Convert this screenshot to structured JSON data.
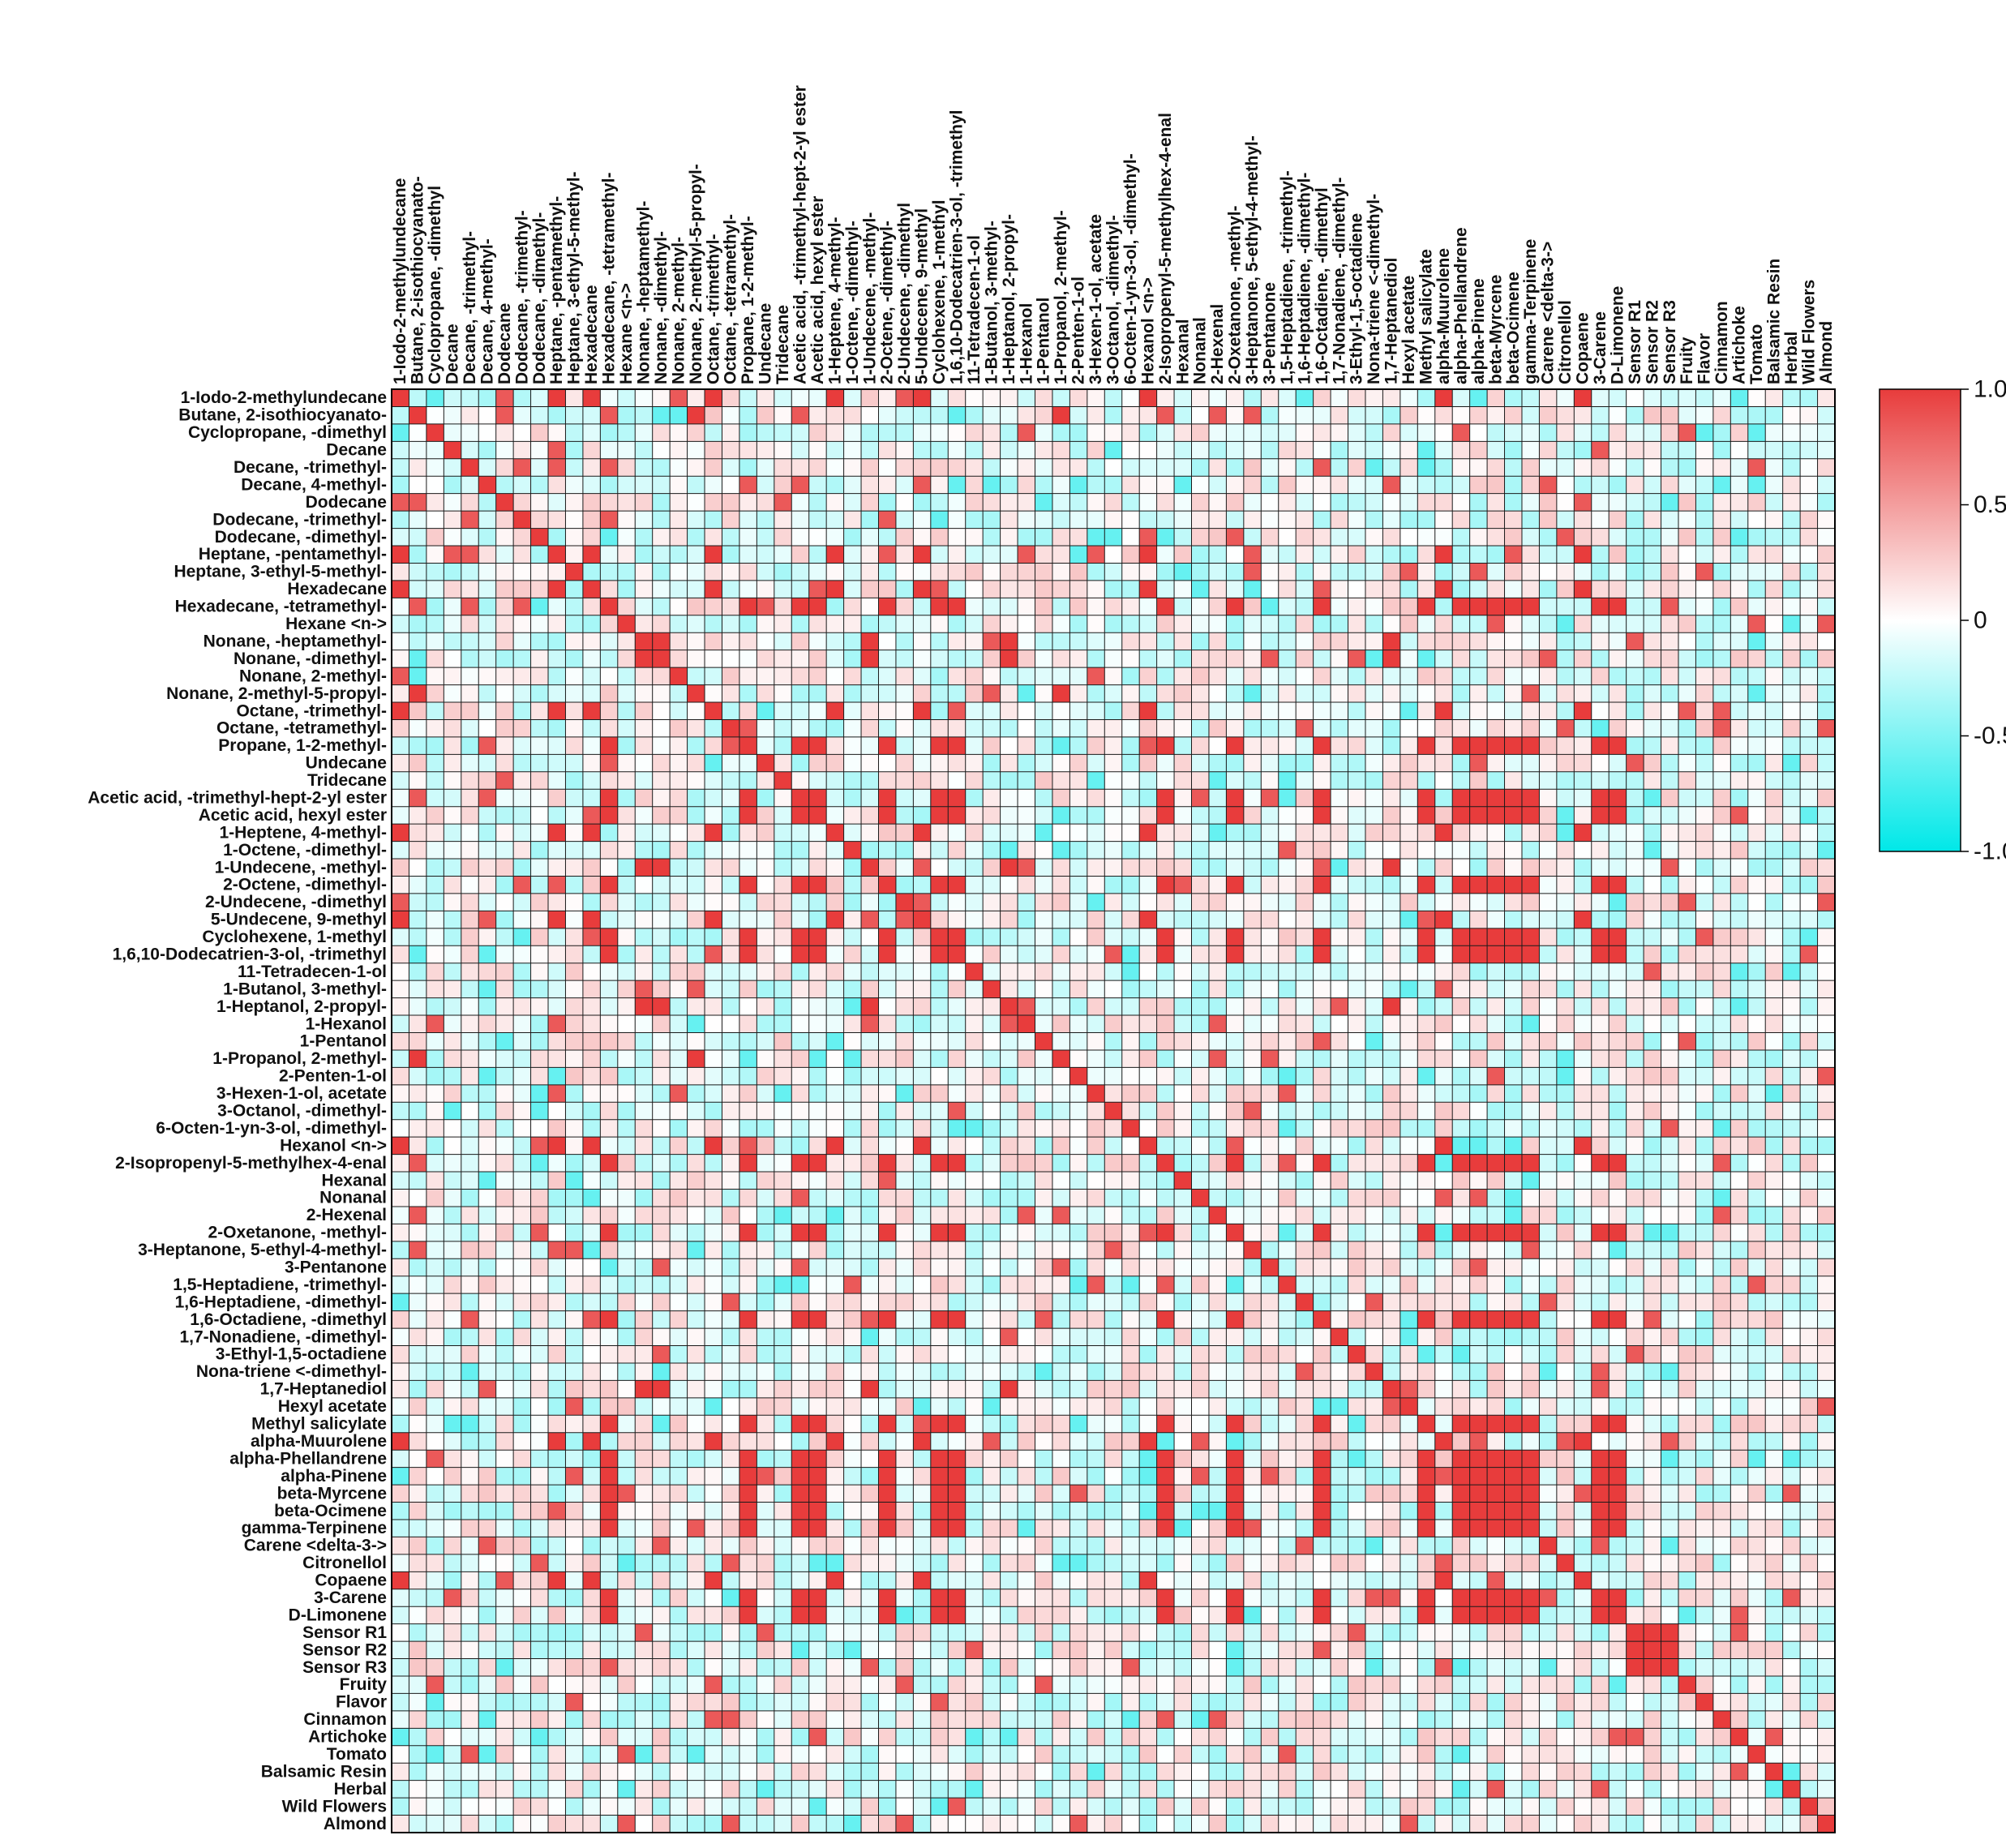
{
  "chart_data": {
    "type": "heatmap",
    "variables": [
      "1-Iodo-2-methylundecane",
      "Butane, 2-isothiocyanato-",
      "Cyclopropane, -dimethyl",
      "Decane",
      "Decane, -trimethyl-",
      "Decane, 4-methyl-",
      "Dodecane",
      "Dodecane, -trimethyl-",
      "Dodecane, -dimethyl-",
      "Heptane, -pentamethyl-",
      "Heptane, 3-ethyl-5-methyl-",
      "Hexadecane",
      "Hexadecane, -tetramethyl-",
      "Hexane <n->",
      "Nonane, -heptamethyl-",
      "Nonane, -dimethyl-",
      "Nonane, 2-methyl-",
      "Nonane, 2-methyl-5-propyl-",
      "Octane, -trimethyl-",
      "Octane, -tetramethyl-",
      "Propane, 1-2-methyl-",
      "Undecane",
      "Tridecane",
      "Acetic acid, -trimethyl-hept-2-yl ester",
      "Acetic acid, hexyl ester",
      "1-Heptene, 4-methyl-",
      "1-Octene, -dimethyl-",
      "1-Undecene, -methyl-",
      "2-Octene, -dimethyl-",
      "2-Undecene, -dimethyl",
      "5-Undecene, 9-methyl",
      "Cyclohexene, 1-methyl",
      "1,6,10-Dodecatrien-3-ol, -trimethyl",
      "11-Tetradecen-1-ol",
      "1-Butanol, 3-methyl-",
      "1-Heptanol, 2-propyl-",
      "1-Hexanol",
      "1-Pentanol",
      "1-Propanol, 2-methyl-",
      "2-Penten-1-ol",
      "3-Hexen-1-ol, acetate",
      "3-Octanol, -dimethyl-",
      "6-Octen-1-yn-3-ol, -dimethyl-",
      "Hexanol <n->",
      "2-Isopropenyl-5-methylhex-4-enal",
      "Hexanal",
      "Nonanal",
      "2-Hexenal",
      "2-Oxetanone, -methyl-",
      "3-Heptanone, 5-ethyl-4-methyl-",
      "3-Pentanone",
      "1,5-Heptadiene, -trimethyl-",
      "1,6-Heptadiene, -dimethyl-",
      "1,6-Octadiene, -dimethyl",
      "1,7-Nonadiene, -dimethyl-",
      "3-Ethyl-1,5-octadiene",
      "Nona-triene <-dimethyl-",
      "1,7-Heptanediol",
      "Hexyl acetate",
      "Methyl salicylate",
      "alpha-Muurolene",
      "alpha-Phellandrene",
      "alpha-Pinene",
      "beta-Myrcene",
      "beta-Ocimene",
      "gamma-Terpinene",
      "Carene <delta-3->",
      "Citronellol",
      "Copaene",
      "3-Carene",
      "D-Limonene",
      "Sensor R1",
      "Sensor R2",
      "Sensor R3",
      "Fruity",
      "Flavor",
      "Cinnamon",
      "Artichoke",
      "Tomato",
      "Balsamic Resin",
      "Herbal",
      "Wild Flowers",
      "Almond"
    ],
    "strong_positive_groups": [
      [
        "Hexadecane, -tetramethyl-",
        "Propane, 1-2-methyl-",
        "Acetic acid, -trimethyl-hept-2-yl ester",
        "Acetic acid, hexyl ester",
        "2-Octene, -dimethyl-",
        "Cyclohexene, 1-methyl",
        "1,6,10-Dodecatrien-3-ol, -trimethyl",
        "2-Isopropenyl-5-methylhex-4-enal",
        "2-Oxetanone, -methyl-",
        "1,6-Octadiene, -dimethyl",
        "Methyl salicylate",
        "alpha-Phellandrene",
        "alpha-Pinene",
        "beta-Myrcene",
        "beta-Ocimene",
        "gamma-Terpinene",
        "3-Carene",
        "D-Limonene"
      ],
      [
        "Nonane, -heptamethyl-",
        "Nonane, -dimethyl-",
        "1-Undecene, -methyl-",
        "1-Heptanol, 2-propyl-",
        "1,7-Heptanediol"
      ],
      [
        "1-Iodo-2-methylundecane",
        "Heptane, -pentamethyl-",
        "Hexadecane",
        "Octane, -trimethyl-",
        "1-Heptene, 4-methyl-",
        "5-Undecene, 9-methyl",
        "Hexanol <n->",
        "alpha-Muurolene",
        "Copaene"
      ],
      [
        "Sensor R1",
        "Sensor R2",
        "Sensor R3"
      ],
      [
        "Butane, 2-isothiocyanato-",
        "1-Propanol, 2-methyl-",
        "Nonane, 2-methyl-5-propyl-"
      ]
    ],
    "colorbar": {
      "ticks": [
        "1.0",
        "0.5",
        "0",
        "-0.5",
        "-1.0"
      ],
      "range": [
        -1,
        1
      ],
      "low_color": "#00e8e8",
      "mid_color": "#ffffff",
      "high_color": "#e83c3c"
    },
    "grid": true,
    "legend": "right"
  }
}
